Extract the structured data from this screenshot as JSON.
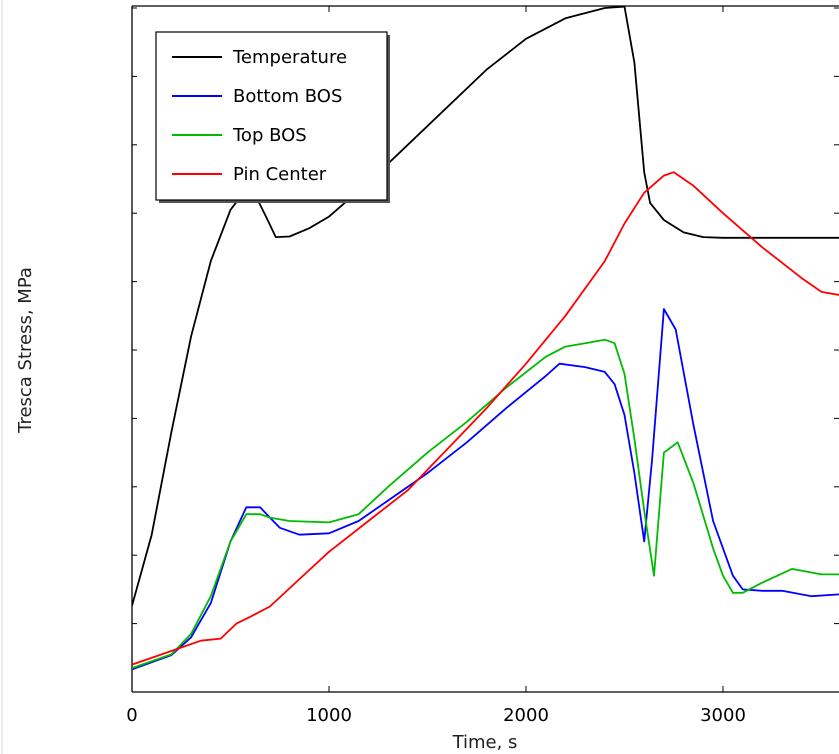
{
  "chart_data": {
    "type": "line",
    "title": "",
    "xlabel": "Time, s",
    "ylabel": "Tresca Stress, MPa",
    "xlim": [
      0,
      3600
    ],
    "x_ticks": [
      "0",
      "1000",
      "2000",
      "3000"
    ],
    "x_tick_values": [
      0,
      1000,
      2000,
      3000
    ],
    "ylim": [
      0,
      10
    ],
    "y_tick_values": [
      0,
      1,
      2,
      3,
      4,
      5,
      6,
      7,
      8,
      9,
      10
    ],
    "y_tick_labels_visible": false,
    "grid": false,
    "legend": {
      "position": "top-left"
    },
    "series": [
      {
        "name": "Temperature",
        "color": "#000000",
        "points": [
          [
            0,
            1.26
          ],
          [
            100,
            2.3
          ],
          [
            200,
            3.8
          ],
          [
            300,
            5.2
          ],
          [
            400,
            6.3
          ],
          [
            500,
            7.05
          ],
          [
            580,
            7.35
          ],
          [
            620,
            7.3
          ],
          [
            680,
            6.95
          ],
          [
            730,
            6.65
          ],
          [
            800,
            6.66
          ],
          [
            900,
            6.78
          ],
          [
            1000,
            6.95
          ],
          [
            1200,
            7.45
          ],
          [
            1400,
            8.0
          ],
          [
            1600,
            8.55
          ],
          [
            1800,
            9.1
          ],
          [
            2000,
            9.55
          ],
          [
            2200,
            9.85
          ],
          [
            2400,
            10.0
          ],
          [
            2500,
            10.02
          ],
          [
            2550,
            9.2
          ],
          [
            2600,
            7.6
          ],
          [
            2630,
            7.15
          ],
          [
            2700,
            6.9
          ],
          [
            2800,
            6.72
          ],
          [
            2900,
            6.65
          ],
          [
            3000,
            6.64
          ],
          [
            3200,
            6.64
          ],
          [
            3600,
            6.64
          ]
        ]
      },
      {
        "name": "Bottom BOS",
        "color": "#0000ff",
        "points": [
          [
            0,
            0.33
          ],
          [
            200,
            0.54
          ],
          [
            300,
            0.8
          ],
          [
            400,
            1.3
          ],
          [
            500,
            2.2
          ],
          [
            580,
            2.7
          ],
          [
            650,
            2.7
          ],
          [
            700,
            2.55
          ],
          [
            750,
            2.4
          ],
          [
            850,
            2.3
          ],
          [
            1000,
            2.32
          ],
          [
            1150,
            2.5
          ],
          [
            1300,
            2.8
          ],
          [
            1500,
            3.2
          ],
          [
            1700,
            3.65
          ],
          [
            1900,
            4.15
          ],
          [
            2100,
            4.62
          ],
          [
            2170,
            4.8
          ],
          [
            2300,
            4.75
          ],
          [
            2400,
            4.68
          ],
          [
            2450,
            4.5
          ],
          [
            2500,
            4.05
          ],
          [
            2550,
            3.2
          ],
          [
            2600,
            2.2
          ],
          [
            2640,
            3.4
          ],
          [
            2700,
            5.6
          ],
          [
            2760,
            5.3
          ],
          [
            2850,
            3.9
          ],
          [
            2950,
            2.5
          ],
          [
            3050,
            1.7
          ],
          [
            3100,
            1.5
          ],
          [
            3200,
            1.48
          ],
          [
            3300,
            1.48
          ],
          [
            3450,
            1.4
          ],
          [
            3600,
            1.43
          ]
        ]
      },
      {
        "name": "Top BOS",
        "color": "#00bb00",
        "points": [
          [
            0,
            0.35
          ],
          [
            200,
            0.55
          ],
          [
            300,
            0.85
          ],
          [
            400,
            1.4
          ],
          [
            500,
            2.2
          ],
          [
            580,
            2.6
          ],
          [
            650,
            2.6
          ],
          [
            700,
            2.55
          ],
          [
            800,
            2.5
          ],
          [
            1000,
            2.48
          ],
          [
            1150,
            2.6
          ],
          [
            1300,
            3.0
          ],
          [
            1500,
            3.5
          ],
          [
            1700,
            3.95
          ],
          [
            1900,
            4.45
          ],
          [
            2100,
            4.9
          ],
          [
            2200,
            5.05
          ],
          [
            2300,
            5.1
          ],
          [
            2400,
            5.15
          ],
          [
            2450,
            5.1
          ],
          [
            2500,
            4.65
          ],
          [
            2550,
            3.7
          ],
          [
            2600,
            2.65
          ],
          [
            2650,
            1.7
          ],
          [
            2700,
            3.5
          ],
          [
            2770,
            3.65
          ],
          [
            2850,
            3.05
          ],
          [
            2950,
            2.1
          ],
          [
            3000,
            1.7
          ],
          [
            3050,
            1.45
          ],
          [
            3100,
            1.45
          ],
          [
            3200,
            1.6
          ],
          [
            3350,
            1.8
          ],
          [
            3500,
            1.72
          ],
          [
            3600,
            1.72
          ]
        ]
      },
      {
        "name": "Pin Center",
        "color": "#ff0000",
        "points": [
          [
            0,
            0.4
          ],
          [
            150,
            0.55
          ],
          [
            250,
            0.65
          ],
          [
            350,
            0.75
          ],
          [
            450,
            0.78
          ],
          [
            530,
            1.0
          ],
          [
            600,
            1.1
          ],
          [
            700,
            1.25
          ],
          [
            850,
            1.65
          ],
          [
            1000,
            2.05
          ],
          [
            1200,
            2.5
          ],
          [
            1400,
            2.95
          ],
          [
            1600,
            3.55
          ],
          [
            1800,
            4.15
          ],
          [
            2000,
            4.8
          ],
          [
            2200,
            5.5
          ],
          [
            2400,
            6.3
          ],
          [
            2500,
            6.85
          ],
          [
            2600,
            7.3
          ],
          [
            2700,
            7.55
          ],
          [
            2750,
            7.6
          ],
          [
            2850,
            7.4
          ],
          [
            3000,
            7.0
          ],
          [
            3200,
            6.5
          ],
          [
            3400,
            6.05
          ],
          [
            3500,
            5.85
          ],
          [
            3600,
            5.8
          ]
        ]
      }
    ]
  }
}
